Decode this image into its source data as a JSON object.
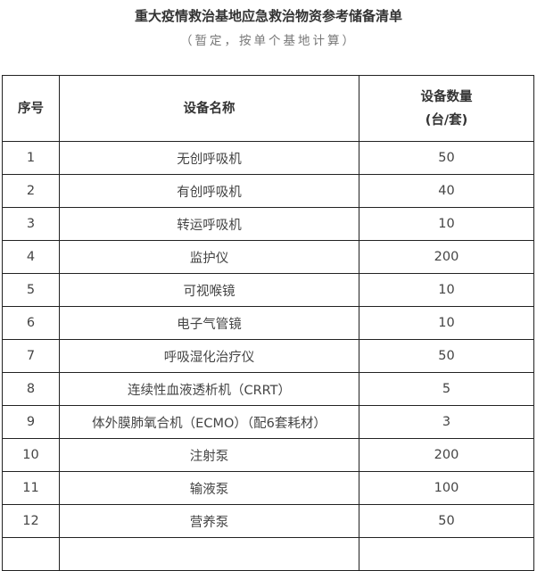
{
  "title": "重大疫情救治基地应急救治物资参考储备清单",
  "subtitle": "（暂定，按单个基地计算）",
  "table": {
    "headers": [
      "序号",
      "设备名称",
      "设备数量",
      "(台/套)"
    ],
    "rows": [
      [
        "1",
        "无创呼吸机",
        "50"
      ],
      [
        "2",
        "有创呼吸机",
        "40"
      ],
      [
        "3",
        "转运呼吸机",
        "10"
      ],
      [
        "4",
        "监护仪",
        "200"
      ],
      [
        "5",
        "可视喉镜",
        "10"
      ],
      [
        "6",
        "电子气管镜",
        "10"
      ],
      [
        "7",
        "呼吸湿化治疗仪",
        "50"
      ],
      [
        "8",
        "连续性血液透析机（CRRT）",
        "5"
      ],
      [
        "9",
        "体外膜肺氧合机（ECMO）（配6套耗材）",
        "3"
      ],
      [
        "10",
        "注射泵",
        "200"
      ],
      [
        "11",
        "输液泵",
        "100"
      ],
      [
        "12",
        "营养泵",
        "50"
      ]
    ]
  }
}
